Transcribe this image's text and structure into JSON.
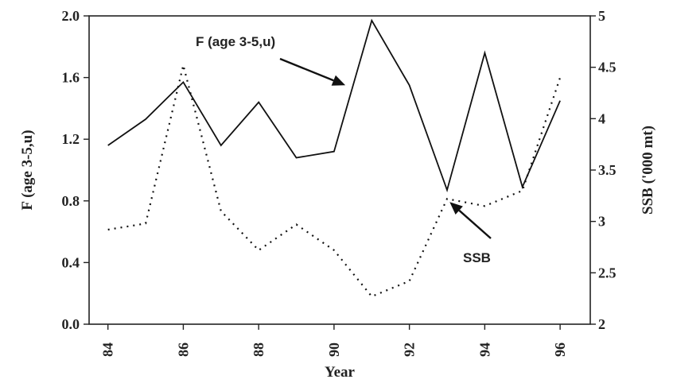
{
  "chart_data": {
    "type": "line",
    "title": "",
    "xlabel": "Year",
    "ylabel_left": "F (age 3-5,u)",
    "ylabel_right": "SSB ('000 mt)",
    "xlim": [
      83.5,
      96.8
    ],
    "ylim_left": [
      0,
      2.0
    ],
    "ylim_right": [
      2,
      5
    ],
    "x_ticks": [
      84,
      86,
      88,
      90,
      92,
      94,
      96
    ],
    "x_tick_labels": [
      "84",
      "86",
      "88",
      "90",
      "92",
      "94",
      "96"
    ],
    "y_left_ticks": [
      0,
      0.4,
      0.8,
      1.2,
      1.6,
      2.0
    ],
    "y_left_tick_labels": [
      "0.0",
      "0.4",
      "0.8",
      "1.2",
      "1.6",
      "2.0"
    ],
    "y_right_ticks": [
      2,
      2.5,
      3,
      3.5,
      4,
      4.5,
      5
    ],
    "y_right_tick_labels": [
      "2",
      "2.5",
      "3",
      "3.5",
      "4",
      "4.5",
      "5"
    ],
    "grid": false,
    "series": [
      {
        "name": "F (age 3-5,u)",
        "axis": "left",
        "style": "solid",
        "x": [
          84,
          85,
          86,
          87,
          88,
          89,
          90,
          91,
          92,
          93,
          94,
          95,
          96
        ],
        "y": [
          1.16,
          1.33,
          1.57,
          1.16,
          1.44,
          1.08,
          1.12,
          1.97,
          1.55,
          0.87,
          1.76,
          0.89,
          1.45
        ]
      },
      {
        "name": "SSB",
        "axis": "right",
        "style": "dotted",
        "x": [
          84,
          85,
          86,
          87,
          88,
          89,
          90,
          91,
          92,
          93,
          94,
          95,
          96
        ],
        "y": [
          2.92,
          2.98,
          4.52,
          3.1,
          2.72,
          2.97,
          2.72,
          2.27,
          2.42,
          3.22,
          3.15,
          3.3,
          4.4
        ]
      }
    ],
    "annotations": [
      {
        "text": "F (age 3-5,u)",
        "arrow_target": {
          "x": 90.3,
          "y": 1.55,
          "axis": "left"
        }
      },
      {
        "text": "SSB",
        "arrow_target": {
          "x": 92.9,
          "y": 3.22,
          "axis": "right"
        }
      }
    ]
  }
}
